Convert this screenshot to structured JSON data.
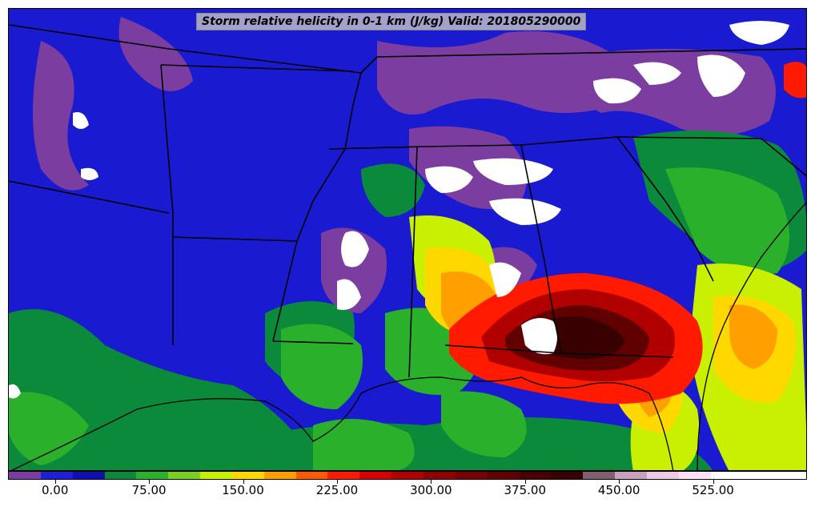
{
  "title": "Storm relative helicity in 0-1 km (J/kg) Valid: 201805290000",
  "colorbar": {
    "colors": [
      "#7b3ea0",
      "#1f1fd6",
      "#1010b0",
      "#0a8a3a",
      "#2ab02a",
      "#7ad020",
      "#c8f000",
      "#ffd800",
      "#ffa000",
      "#ff5a00",
      "#ff1a00",
      "#d80000",
      "#b00000",
      "#900000",
      "#780000",
      "#600000",
      "#4a0000",
      "#380000",
      "#806070",
      "#c8a0c0",
      "#f0c8e8",
      "#ffe0f8",
      "#ffffff",
      "#ffffff",
      "#ffffff"
    ],
    "tick_labels": [
      "0.00",
      "75.00",
      "150.00",
      "225.00",
      "300.00",
      "375.00",
      "450.00",
      "525.00"
    ],
    "tick_values": [
      0,
      75,
      150,
      225,
      300,
      375,
      450,
      525
    ],
    "range": [
      -37.5,
      600
    ]
  },
  "palette": {
    "background": "#1a1ad0",
    "purple": "#7b3ea0",
    "green_dark": "#0a8a3a",
    "green": "#2ab02a",
    "lime": "#7ad020",
    "yellow": "#ffd800",
    "orange": "#ffa000",
    "red": "#ff1a00",
    "dark_red": "#900000",
    "maroon": "#4a0000",
    "white": "#ffffff",
    "boundary": "#000000"
  }
}
